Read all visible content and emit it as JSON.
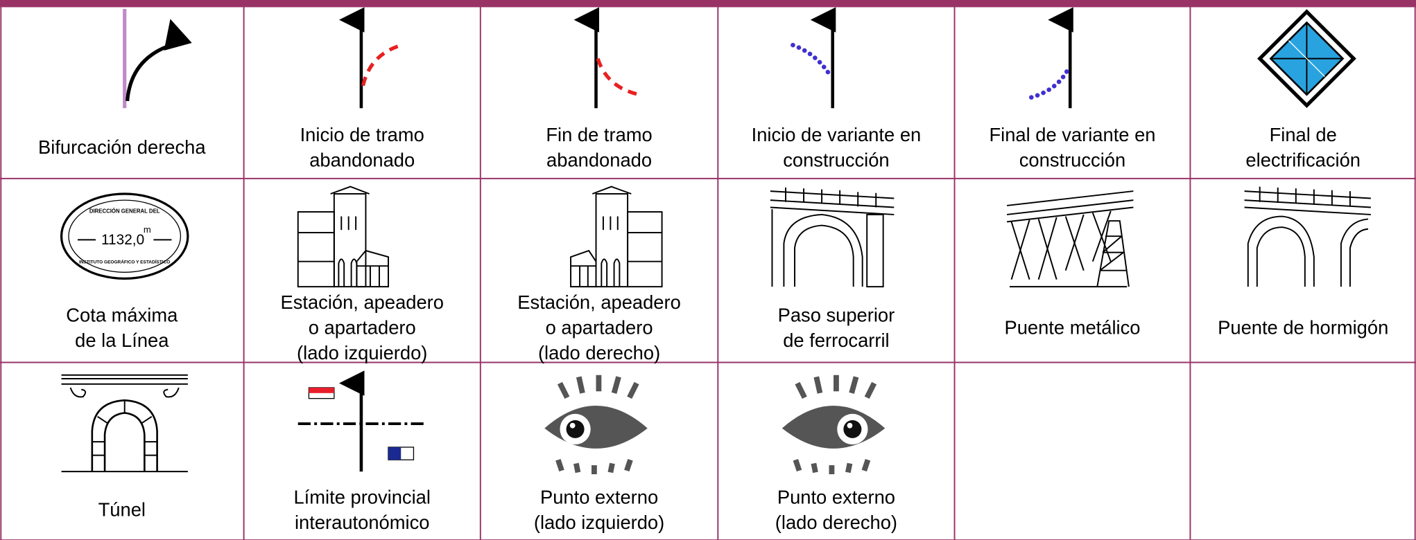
{
  "table": {
    "rows": [
      [
        {
          "lines": [
            "Bifurcación derecha"
          ]
        },
        {
          "lines": [
            "Inicio de tramo",
            "abandonado"
          ]
        },
        {
          "lines": [
            "Fin de tramo",
            "abandonado"
          ]
        },
        {
          "lines": [
            "Inicio de variante en",
            "construcción"
          ]
        },
        {
          "lines": [
            "Final de variante en",
            "construcción"
          ]
        },
        {
          "lines": [
            "Final de",
            "electrificación"
          ]
        }
      ],
      [
        {
          "lines": [
            "Cota máxima",
            "de la Línea"
          ]
        },
        {
          "lines": [
            "Estación, apeadero",
            "o apartadero",
            "(lado izquierdo)"
          ]
        },
        {
          "lines": [
            "Estación, apeadero",
            "o apartadero",
            "(lado derecho)"
          ]
        },
        {
          "lines": [
            "Paso superior",
            "de ferrocarril"
          ]
        },
        {
          "lines": [
            "Puente metálico"
          ]
        },
        {
          "lines": [
            "Puente de hormigón"
          ]
        }
      ],
      [
        {
          "lines": [
            "Túnel"
          ]
        },
        {
          "lines": [
            "Límite provincial",
            "interautonómico"
          ]
        },
        {
          "lines": [
            "Punto externo",
            "(lado izquierdo)"
          ]
        },
        {
          "lines": [
            "Punto externo",
            "(lado derecho)"
          ]
        }
      ]
    ],
    "stamp": {
      "top": "DIRECCIÓN GENERAL DEL",
      "value": "1132,0",
      "unit": "m",
      "bottom": "INSTITUTO GEOGRÁFICO Y ESTADÍSTICO"
    }
  }
}
